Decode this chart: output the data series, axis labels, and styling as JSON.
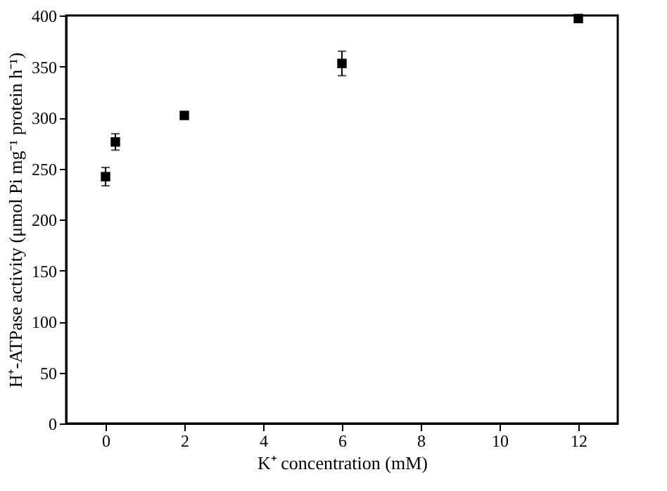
{
  "chart_data": {
    "type": "scatter",
    "xlabel": "K⁺ concentration (mM)",
    "ylabel": "H⁺-ATPase activity (μmol Pi mg⁻¹ protein h⁻¹)",
    "x": [
      0,
      0.25,
      2,
      6,
      12
    ],
    "values": [
      242,
      276,
      302,
      353,
      397
    ],
    "errors": [
      9,
      8,
      null,
      12,
      null
    ],
    "color": "#000000",
    "marker": "square",
    "xlim": [
      -1,
      13
    ],
    "xticks": [
      0,
      2,
      4,
      6,
      8,
      10,
      12
    ],
    "ylim": [
      0,
      400
    ],
    "yticks": [
      0,
      50,
      100,
      150,
      200,
      250,
      300,
      350,
      400
    ],
    "grid": false
  }
}
